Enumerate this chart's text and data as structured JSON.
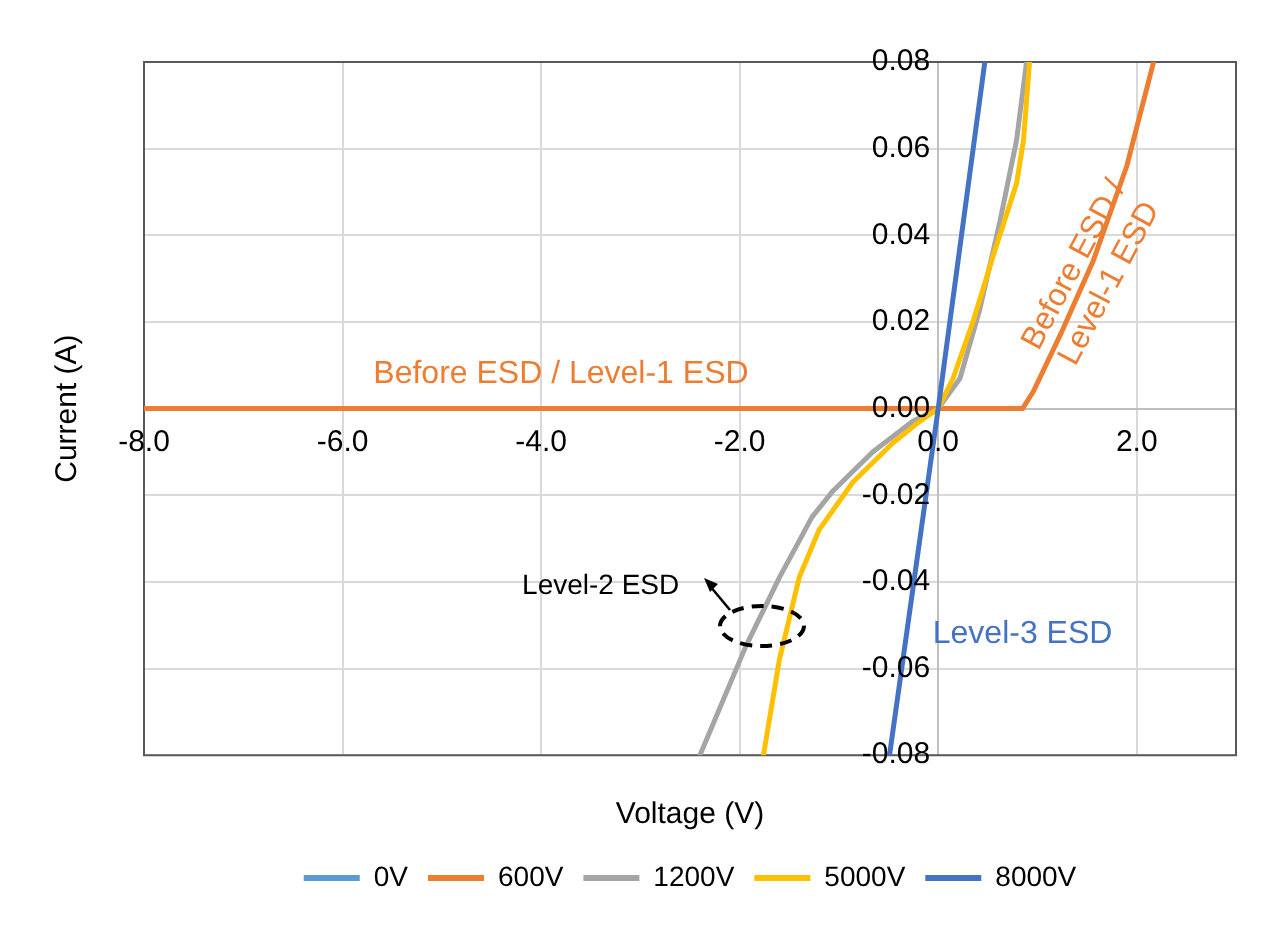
{
  "chart_data": {
    "type": "line",
    "xlabel": "Voltage (V)",
    "ylabel": "Current (A)",
    "xlim": [
      -8,
      3
    ],
    "ylim": [
      -0.08,
      0.08
    ],
    "xticks": [
      {
        "value": -8,
        "label": "-8.0"
      },
      {
        "value": -6,
        "label": "-6.0"
      },
      {
        "value": -4,
        "label": "-4.0"
      },
      {
        "value": -2,
        "label": "-2.0"
      },
      {
        "value": 0,
        "label": "0.0"
      },
      {
        "value": 2,
        "label": "2.0"
      }
    ],
    "yticks": [
      {
        "value": -0.08,
        "label": "-0.08"
      },
      {
        "value": -0.06,
        "label": "-0.06"
      },
      {
        "value": -0.04,
        "label": "-0.04"
      },
      {
        "value": -0.02,
        "label": "-0.02"
      },
      {
        "value": 0,
        "label": "0.00"
      },
      {
        "value": 0.02,
        "label": "0.02"
      },
      {
        "value": 0.04,
        "label": "0.04"
      },
      {
        "value": 0.06,
        "label": "0.06"
      },
      {
        "value": 0.08,
        "label": "0.08"
      }
    ],
    "grid": true,
    "legend": "bottom",
    "marker": "none",
    "line_style": "solid",
    "series": [
      {
        "name": "0V",
        "color": "#5b9bd5"
      },
      {
        "name": "600V",
        "color": "#ed7d31",
        "x": [
          -8,
          0.85,
          0.96,
          1.23,
          1.56,
          1.9,
          2.17
        ],
        "values": [
          0,
          0,
          0.004,
          0.017,
          0.034,
          0.056,
          0.08
        ]
      },
      {
        "name": "1200V",
        "color": "#a5a5a5",
        "x": [
          -2.4,
          -1.94,
          -1.6,
          -1.27,
          -1.06,
          -0.66,
          -0.26,
          0,
          0.22,
          0.42,
          0.62,
          0.79,
          0.89
        ],
        "values": [
          -0.08,
          -0.055,
          -0.039,
          -0.025,
          -0.019,
          -0.01,
          -0.003,
          0,
          0.007,
          0.023,
          0.043,
          0.062,
          0.08
        ]
      },
      {
        "name": "5000V",
        "color": "#ffc000",
        "x": [
          -1.76,
          -1.6,
          -1.4,
          -1.2,
          -0.86,
          -0.46,
          -0.19,
          0,
          0.15,
          0.35,
          0.55,
          0.79,
          0.86,
          0.92
        ],
        "values": [
          -0.08,
          -0.058,
          -0.039,
          -0.028,
          -0.017,
          -0.008,
          -0.003,
          0,
          0.007,
          0.02,
          0.035,
          0.052,
          0.062,
          0.08
        ]
      },
      {
        "name": "8000V",
        "color": "#4472c4",
        "x": [
          -0.49,
          0,
          0.47
        ],
        "values": [
          -0.08,
          0,
          0.08
        ]
      }
    ],
    "annotations": [
      "Before ESD / Level-1 ESD",
      "Before ESD / Level-1 ESD",
      "Level-2 ESD",
      "Level-3 ESD"
    ]
  }
}
